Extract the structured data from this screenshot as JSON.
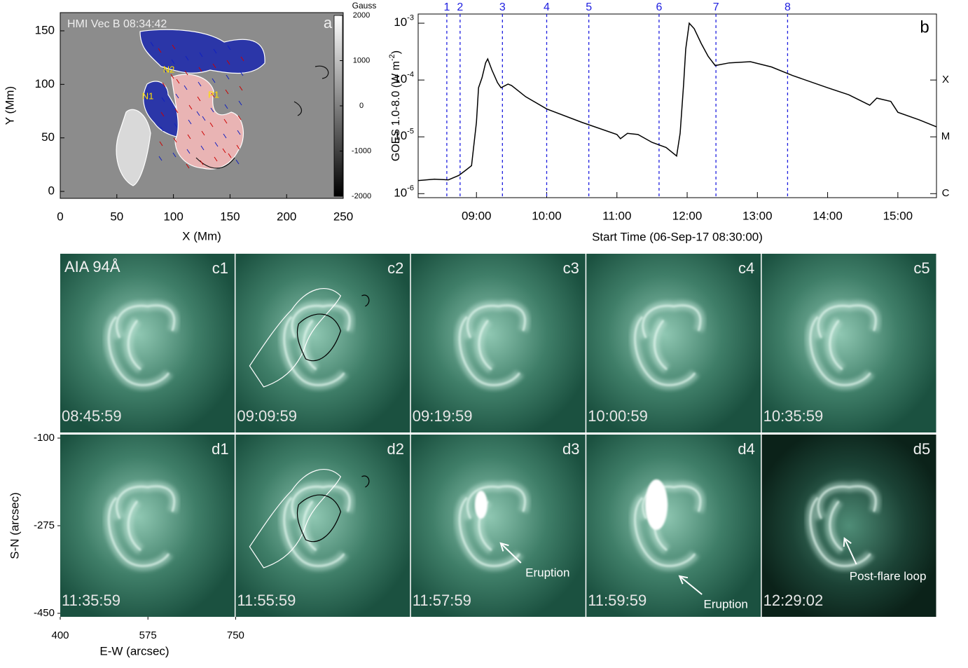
{
  "chart_data": [
    {
      "type": "image",
      "title": "HMI Vec B 08:34:42",
      "panel_label": "a",
      "x_label": "X (Mm)",
      "y_label": "Y (Mm)",
      "xlim": [
        0,
        250
      ],
      "xticks": [
        0,
        50,
        100,
        150,
        200,
        250
      ],
      "ylim": [
        -6.5,
        167
      ],
      "yticks": [
        0,
        50,
        100,
        150
      ],
      "colorbar": {
        "title": "Gauss",
        "lim": [
          -2000,
          2000
        ],
        "ticks": [
          -2000,
          -1000,
          0,
          1000,
          2000
        ]
      },
      "annotations": [
        "N2",
        "N1",
        "P1"
      ]
    },
    {
      "type": "line",
      "panel_label": "b",
      "x_label": "Start Time (06-Sep-17 08:30:00)",
      "y_label": [
        "GOES 1.0-8.0  (W m",
        "-2",
        ")"
      ],
      "log_y": true,
      "xlim": [
        8.17,
        15.55
      ],
      "xticks": [
        {
          "value": 9,
          "label": "09:00"
        },
        {
          "value": 10,
          "label": "10:00"
        },
        {
          "value": 11,
          "label": "11:00"
        },
        {
          "value": 12,
          "label": "12:00"
        },
        {
          "value": 13,
          "label": "13:00"
        },
        {
          "value": 14,
          "label": "14:00"
        },
        {
          "value": 15,
          "label": "15:00"
        }
      ],
      "ylim": [
        8.5e-07,
        0.00145
      ],
      "yticks": [
        {
          "value": 1e-06,
          "label": "10",
          "exponent": "-6"
        },
        {
          "value": 1e-05,
          "label": "10",
          "exponent": "-5"
        },
        {
          "value": 0.0001,
          "label": "10",
          "exponent": "-4"
        },
        {
          "value": 0.001,
          "label": "10",
          "exponent": "-3"
        }
      ],
      "y2ticks": [
        {
          "value": 1e-06,
          "label": "C"
        },
        {
          "value": 1e-05,
          "label": "M"
        },
        {
          "value": 0.0001,
          "label": "X"
        }
      ],
      "markers": {
        "color": "#2020e0",
        "items": [
          {
            "value": 8.578,
            "label": "1"
          },
          {
            "value": 8.767,
            "label": "2"
          },
          {
            "value": 9.37,
            "label": "3"
          },
          {
            "value": 10.0,
            "label": "4"
          },
          {
            "value": 10.6,
            "label": "5"
          },
          {
            "value": 11.6,
            "label": "6"
          },
          {
            "value": 12.41,
            "label": "7"
          },
          {
            "value": 13.43,
            "label": "8"
          }
        ]
      },
      "x": [
        8.17,
        8.4,
        8.6,
        8.75,
        8.85,
        8.93,
        9.0,
        9.03,
        9.08,
        9.13,
        9.16,
        9.22,
        9.3,
        9.35,
        9.45,
        9.5,
        9.7,
        10.0,
        10.5,
        11.0,
        11.05,
        11.15,
        11.3,
        11.5,
        11.7,
        11.85,
        11.9,
        11.95,
        11.98,
        12.03,
        12.1,
        12.2,
        12.3,
        12.4,
        12.6,
        12.9,
        13.2,
        13.5,
        14.0,
        14.3,
        14.6,
        14.7,
        14.9,
        15.0,
        15.3,
        15.55
      ],
      "series": [
        {
          "color": "#000000",
          "values": [
            1.7e-06,
            1.8e-06,
            1.75e-06,
            2.1e-06,
            2.6e-06,
            3.1e-06,
            1.8e-05,
            7.3e-05,
            0.00011,
            0.0002,
            0.000235,
            0.00015,
            9e-05,
            7.3e-05,
            8.5e-05,
            8e-05,
            5.1e-05,
            3.1e-05,
            1.8e-05,
            1.1e-05,
            9.3e-06,
            1.15e-05,
            1.1e-05,
            8e-06,
            6.5e-06,
            4.6e-06,
            1.15e-05,
            8.5e-05,
            0.00035,
            0.001,
            0.0008,
            0.00044,
            0.00026,
            0.00018,
            0.0002,
            0.00021,
            0.00017,
            0.00012,
            7.3e-05,
            5.5e-05,
            3.6e-05,
            4.8e-05,
            4.2e-05,
            2.7e-05,
            2e-05,
            1.5e-05
          ]
        }
      ]
    },
    {
      "type": "image_grid",
      "title": "AIA 94Å",
      "x_label": "E-W (arcsec)",
      "y_label": "S-N (arcsec)",
      "xlim": [
        400,
        750
      ],
      "xticks": [
        400,
        575,
        750
      ],
      "ylim": [
        -457,
        -93
      ],
      "yticks": [
        -100,
        -275,
        -450
      ],
      "panels": [
        {
          "label": "c1",
          "time": "08:45:59"
        },
        {
          "label": "c2",
          "time": "09:09:59"
        },
        {
          "label": "c3",
          "time": "09:19:59"
        },
        {
          "label": "c4",
          "time": "10:00:59"
        },
        {
          "label": "c5",
          "time": "10:35:59"
        },
        {
          "label": "d1",
          "time": "11:35:59"
        },
        {
          "label": "d2",
          "time": "11:55:59"
        },
        {
          "label": "d3",
          "time": "11:57:59",
          "annotation": "Eruption"
        },
        {
          "label": "d4",
          "time": "11:59:59",
          "annotation": "Eruption"
        },
        {
          "label": "d5",
          "time": "12:29:02",
          "annotation": "Post-flare loop"
        }
      ]
    }
  ]
}
